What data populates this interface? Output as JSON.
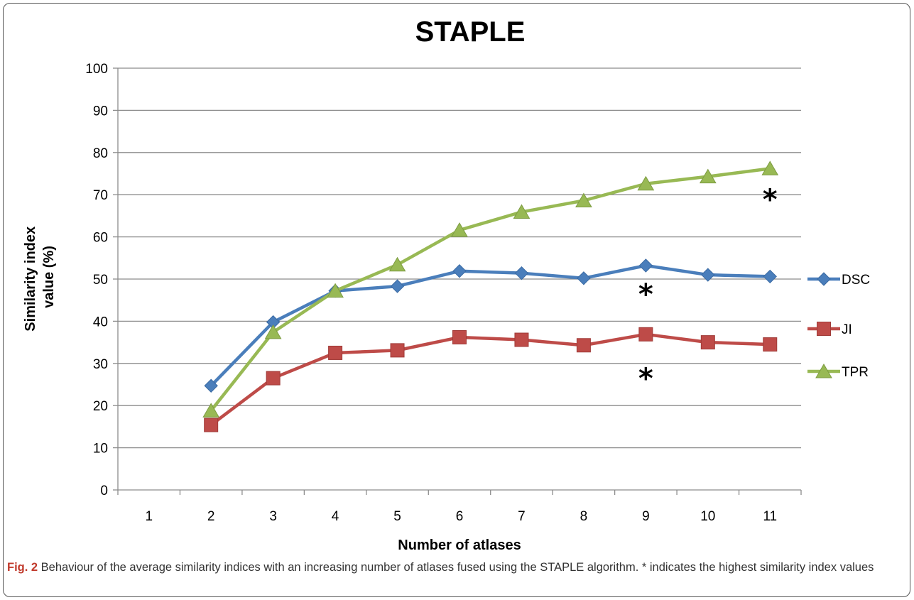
{
  "chart_data": {
    "type": "line",
    "title": "STAPLE",
    "xlabel": "Number of atlases",
    "ylabel_lines": [
      "Similarity index",
      "value (%)"
    ],
    "categories": [
      "1",
      "2",
      "3",
      "4",
      "5",
      "6",
      "7",
      "8",
      "9",
      "10",
      "11"
    ],
    "ylim": [
      0,
      100
    ],
    "yticks": [
      "0",
      "10",
      "20",
      "30",
      "40",
      "50",
      "60",
      "70",
      "80",
      "90",
      "100"
    ],
    "grid": true,
    "legend_position": "right",
    "series": [
      {
        "name": "DSC",
        "color": "#4a7ebb",
        "marker": "diamond",
        "values": [
          null,
          24.7,
          39.8,
          47.2,
          48.3,
          51.9,
          51.4,
          50.2,
          53.2,
          51.0,
          50.6
        ]
      },
      {
        "name": "JI",
        "color": "#be4b48",
        "marker": "square",
        "values": [
          null,
          15.4,
          26.5,
          32.5,
          33.1,
          36.2,
          35.6,
          34.3,
          36.9,
          35.0,
          34.5
        ]
      },
      {
        "name": "TPR",
        "color": "#98b954",
        "marker": "triangle",
        "values": [
          null,
          18.8,
          37.4,
          47.2,
          53.4,
          61.6,
          65.9,
          68.6,
          72.6,
          74.3,
          76.2
        ]
      }
    ],
    "annotations": [
      {
        "text": "*",
        "category": "11",
        "y": 71
      },
      {
        "text": "*",
        "category": "9",
        "y": 48.5
      },
      {
        "text": "*",
        "category": "9",
        "y": 28.5
      }
    ]
  },
  "caption": {
    "label": "Fig. 2",
    "text": " Behaviour of the average similarity indices with an increasing number of atlases fused using the STAPLE algorithm. * indicates the highest similarity index values"
  }
}
